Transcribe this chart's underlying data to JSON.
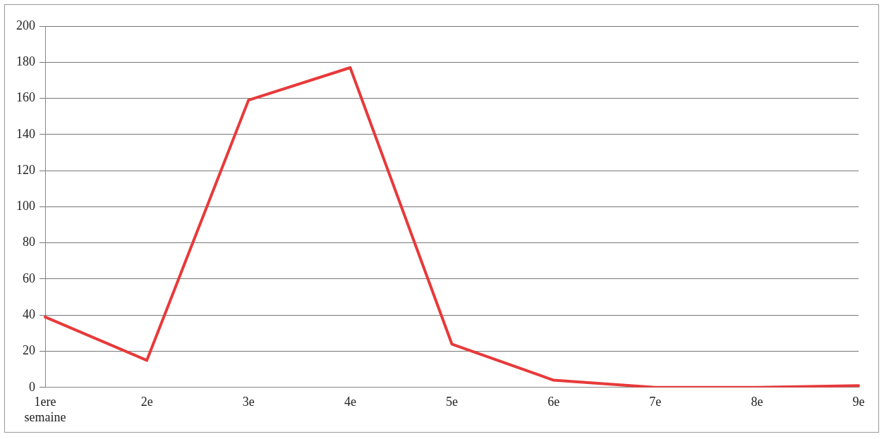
{
  "chart_data": {
    "type": "line",
    "categories": [
      "1ere semaine",
      "2e",
      "3e",
      "4e",
      "5e",
      "6e",
      "7e",
      "8e",
      "9e"
    ],
    "series": [
      {
        "color": "#e8393a",
        "values": [
          39,
          15,
          159,
          177,
          24,
          4,
          0,
          0,
          1
        ]
      }
    ],
    "ylim": [
      0,
      200
    ],
    "yticks": [
      0,
      20,
      40,
      60,
      80,
      100,
      120,
      140,
      160,
      180,
      200
    ],
    "grid": "y",
    "legend": false,
    "marker": "none",
    "line_style": "solid"
  }
}
